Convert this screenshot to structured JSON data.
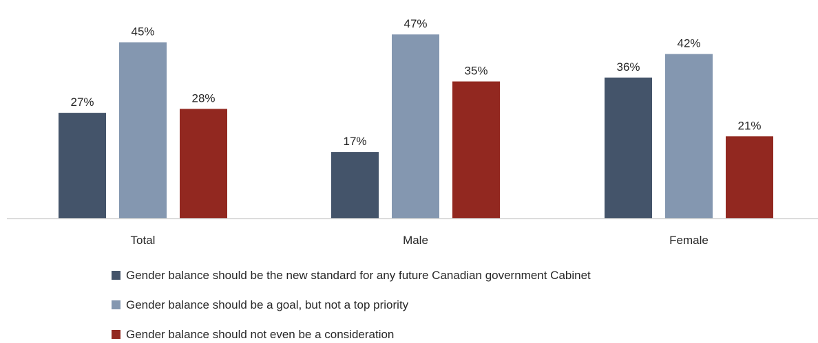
{
  "chart_data": {
    "type": "bar",
    "title": "",
    "xlabel": "",
    "ylabel": "",
    "ylim": [
      0,
      50
    ],
    "grid": false,
    "legend_position": "bottom",
    "categories": [
      "Total",
      "Male",
      "Female"
    ],
    "series": [
      {
        "name": "Gender balance should be the new standard for any future Canadian government Cabinet",
        "color": "#44546a",
        "values": [
          27,
          17,
          36
        ],
        "labels": [
          "27%",
          "17%",
          "36%"
        ]
      },
      {
        "name": "Gender balance should be a goal, but not a top priority",
        "color": "#8497b0",
        "values": [
          45,
          47,
          42
        ],
        "labels": [
          "45%",
          "47%",
          "42%"
        ]
      },
      {
        "name": "Gender balance should not even be a consideration",
        "color": "#922820",
        "values": [
          28,
          35,
          21
        ],
        "labels": [
          "28%",
          "35%",
          "21%"
        ]
      }
    ]
  }
}
